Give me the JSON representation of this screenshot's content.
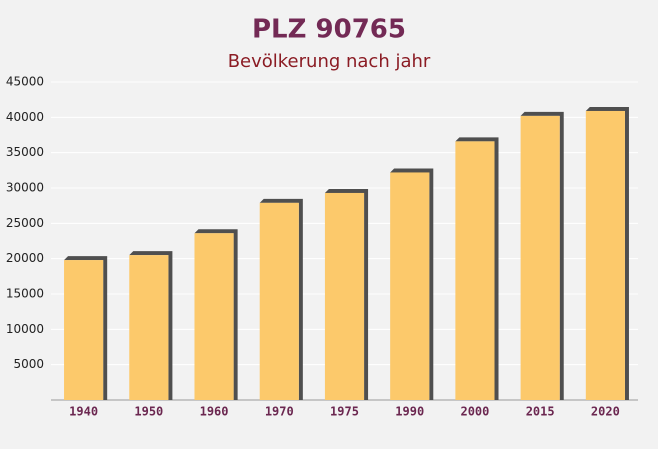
{
  "chart_data": {
    "type": "bar",
    "title": "PLZ 90765",
    "subtitle": "Bevölkerung nach jahr",
    "categories": [
      "1940",
      "1950",
      "1960",
      "1970",
      "1975",
      "1990",
      "2000",
      "2015",
      "2020"
    ],
    "values": [
      19800,
      20500,
      23600,
      27900,
      29300,
      32200,
      36600,
      40200,
      40900
    ],
    "color": "#fcc96b",
    "ylim": [
      0,
      45000
    ],
    "yticks": [
      5000,
      10000,
      15000,
      20000,
      25000,
      30000,
      35000,
      40000,
      45000
    ],
    "grid": true
  }
}
